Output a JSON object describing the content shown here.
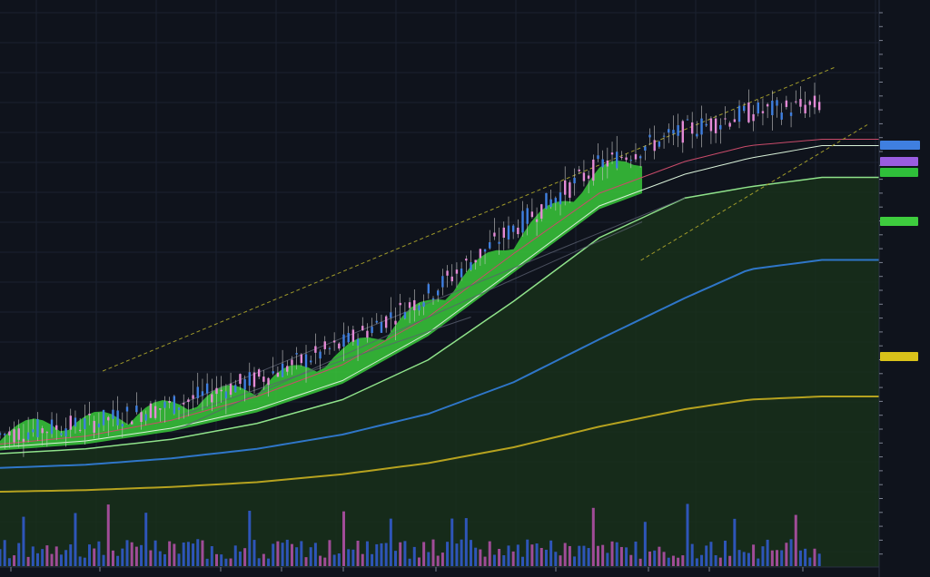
{
  "chart_data": {
    "type": "candlestick",
    "title": "",
    "xlabel": "",
    "ylabel": "",
    "grid": true,
    "legend": "none",
    "price_axis_labels": [
      "",
      ""
    ],
    "time_axis_labels": [
      "",
      "",
      "",
      "",
      "",
      "",
      "",
      "",
      ""
    ],
    "price_tags": [
      {
        "series": "price-tag-blue",
        "color": "#3f7fe0"
      },
      {
        "series": "price-tag-purple",
        "color": "#9a5de0"
      },
      {
        "series": "price-tag-green",
        "color": "#3ecc3e"
      },
      {
        "series": "price-tag-lime",
        "color": "#2fbf3a"
      },
      {
        "series": "price-tag-yellow",
        "color": "#d9c21a"
      }
    ],
    "colors": {
      "background": "#0f131c",
      "grid": "#1b2130",
      "candle_up": "#3f7fe0",
      "candle_down": "#e58ad6",
      "fast_ma": "#c94b6a",
      "mid_ma": "#d8f0d8",
      "ma_50": "#8fe28a",
      "ma_100": "#2f76c8",
      "ma_200": "#b6a21f",
      "trend_upper": "#a09a2a",
      "cloud": "#38c93a",
      "volume_up": "#2e55b8",
      "volume_down": "#a04c97"
    },
    "ma_200": [
      [
        0,
        40
      ],
      [
        20,
        41
      ],
      [
        40,
        43
      ],
      [
        60,
        46
      ],
      [
        80,
        51
      ],
      [
        100,
        58
      ],
      [
        120,
        68
      ],
      [
        140,
        81
      ],
      [
        160,
        92
      ],
      [
        175,
        98
      ],
      [
        192,
        100
      ]
    ],
    "ma_100": [
      [
        0,
        55
      ],
      [
        20,
        57
      ],
      [
        40,
        61
      ],
      [
        60,
        67
      ],
      [
        80,
        76
      ],
      [
        100,
        89
      ],
      [
        120,
        109
      ],
      [
        140,
        136
      ],
      [
        160,
        162
      ],
      [
        175,
        180
      ],
      [
        192,
        186
      ]
    ],
    "ma_50": [
      [
        0,
        64
      ],
      [
        20,
        67
      ],
      [
        40,
        73
      ],
      [
        60,
        83
      ],
      [
        80,
        98
      ],
      [
        100,
        123
      ],
      [
        120,
        160
      ],
      [
        140,
        200
      ],
      [
        160,
        225
      ],
      [
        175,
        232
      ],
      [
        192,
        238
      ]
    ],
    "mid_ma": [
      [
        0,
        68
      ],
      [
        20,
        72
      ],
      [
        40,
        80
      ],
      [
        60,
        92
      ],
      [
        80,
        110
      ],
      [
        100,
        140
      ],
      [
        120,
        180
      ],
      [
        140,
        220
      ],
      [
        160,
        240
      ],
      [
        175,
        250
      ],
      [
        192,
        258
      ]
    ],
    "fast_ma": [
      [
        0,
        70
      ],
      [
        20,
        75
      ],
      [
        40,
        85
      ],
      [
        60,
        100
      ],
      [
        80,
        120
      ],
      [
        100,
        150
      ],
      [
        120,
        190
      ],
      [
        140,
        228
      ],
      [
        160,
        248
      ],
      [
        175,
        258
      ],
      [
        192,
        262
      ]
    ],
    "trend_upper": [
      [
        24,
        116
      ],
      [
        176,
        296
      ]
    ],
    "trend_lower": [
      [
        120,
        180
      ],
      [
        205,
        270
      ]
    ],
    "channel_lines": [
      [
        [
          24,
          80
        ],
        [
          150,
          210
        ]
      ],
      [
        [
          24,
          88
        ],
        [
          110,
          150
        ]
      ],
      [
        [
          24,
          95
        ],
        [
          160,
          225
        ]
      ]
    ],
    "candles_sample": [
      [
        0,
        66,
        68,
        64,
        69
      ],
      [
        6,
        67,
        70,
        66,
        71
      ],
      [
        12,
        70,
        74,
        69,
        76
      ],
      [
        18,
        74,
        80,
        73,
        82
      ],
      [
        24,
        80,
        86,
        79,
        90
      ],
      [
        30,
        82,
        88,
        80,
        92
      ],
      [
        36,
        85,
        91,
        84,
        94
      ],
      [
        42,
        90,
        98,
        88,
        102
      ],
      [
        48,
        98,
        94,
        92,
        101
      ],
      [
        54,
        94,
        100,
        93,
        104
      ],
      [
        60,
        100,
        108,
        99,
        112
      ],
      [
        66,
        106,
        113,
        104,
        116
      ],
      [
        72,
        110,
        118,
        108,
        121
      ],
      [
        78,
        118,
        128,
        116,
        132
      ],
      [
        84,
        126,
        138,
        124,
        142
      ],
      [
        90,
        134,
        142,
        131,
        146
      ],
      [
        96,
        140,
        156,
        138,
        161
      ],
      [
        102,
        156,
        170,
        154,
        176
      ],
      [
        108,
        168,
        182,
        165,
        188
      ],
      [
        114,
        180,
        194,
        178,
        198
      ],
      [
        120,
        192,
        204,
        190,
        210
      ],
      [
        126,
        205,
        196,
        192,
        210
      ],
      [
        132,
        196,
        214,
        194,
        220
      ],
      [
        138,
        214,
        226,
        211,
        234
      ],
      [
        144,
        226,
        240,
        224,
        246
      ],
      [
        150,
        238,
        252,
        236,
        258
      ],
      [
        156,
        250,
        262,
        246,
        270
      ],
      [
        162,
        260,
        254,
        250,
        268
      ],
      [
        168,
        254,
        266,
        252,
        272
      ],
      [
        174,
        264,
        276,
        260,
        282
      ],
      [
        180,
        274,
        268,
        262,
        286
      ],
      [
        186,
        268,
        260,
        256,
        274
      ]
    ]
  }
}
